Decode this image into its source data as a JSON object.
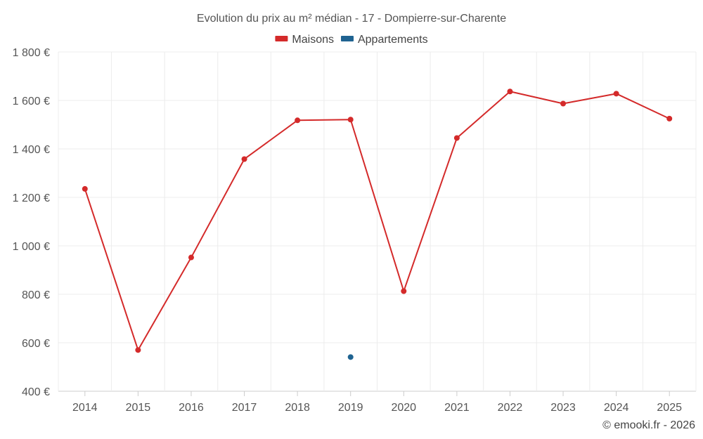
{
  "chart_data": {
    "type": "line",
    "title": "Evolution du prix au m² médian - 17 - Dompierre-sur-Charente",
    "categories": [
      "2014",
      "2015",
      "2016",
      "2017",
      "2018",
      "2019",
      "2020",
      "2021",
      "2022",
      "2023",
      "2024",
      "2025"
    ],
    "series": [
      {
        "name": "Maisons",
        "color": "#d42a2a",
        "values": [
          1235,
          570,
          952,
          1358,
          1518,
          1521,
          813,
          1445,
          1637,
          1587,
          1628,
          1525
        ]
      },
      {
        "name": "Appartements",
        "color": "#1f6391",
        "values": [
          null,
          null,
          null,
          null,
          null,
          541,
          null,
          null,
          null,
          null,
          null,
          null
        ]
      }
    ],
    "ylim": [
      400,
      1800
    ],
    "yticks": [
      400,
      600,
      800,
      1000,
      1200,
      1400,
      1600,
      1800
    ],
    "ytick_labels": [
      "400 €",
      "600 €",
      "800 €",
      "1 000 €",
      "1 200 €",
      "1 400 €",
      "1 600 €",
      "1 800 €"
    ],
    "xlabel": "",
    "ylabel": "",
    "grid": true,
    "legend_position": "top-center"
  },
  "credit": "© emooki.fr - 2026"
}
